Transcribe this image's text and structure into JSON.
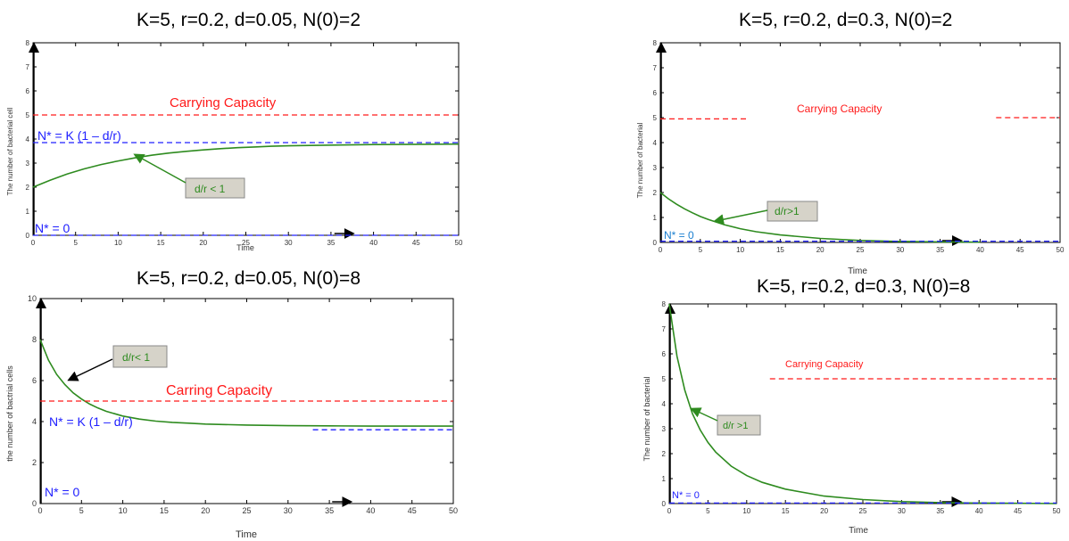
{
  "chart_data": [
    {
      "type": "line",
      "title": "K=5, r=0.2, d=0.05, N(0)=2",
      "xlabel": "Time",
      "ylabel": "The number of bacterial cell",
      "xlim": [
        0,
        50
      ],
      "ylim": [
        0,
        8
      ],
      "xticks": [
        0,
        5,
        10,
        15,
        20,
        25,
        30,
        35,
        40,
        45,
        50
      ],
      "yticks": [
        0,
        1,
        2,
        3,
        4,
        5,
        6,
        7,
        8
      ],
      "grid": false,
      "series": [
        {
          "color": "#2e8b1f",
          "style": "solid",
          "x": [
            0,
            2,
            4,
            6,
            8,
            10,
            12,
            14,
            16,
            18,
            20,
            22,
            24,
            26,
            28,
            30,
            35,
            40,
            45,
            50
          ],
          "y": [
            2.0,
            2.29,
            2.55,
            2.76,
            2.94,
            3.09,
            3.22,
            3.33,
            3.42,
            3.49,
            3.55,
            3.6,
            3.64,
            3.67,
            3.7,
            3.72,
            3.75,
            3.77,
            3.78,
            3.79
          ]
        },
        {
          "color": "#ff1a1a",
          "style": "dashed",
          "x": [
            0,
            50
          ],
          "y": [
            5,
            5
          ]
        },
        {
          "color": "#2020ff",
          "style": "dashed",
          "x": [
            0,
            50
          ],
          "y": [
            3.85,
            3.85
          ]
        },
        {
          "color": "#2020ff",
          "style": "dashed",
          "x": [
            0,
            50
          ],
          "y": [
            0,
            0
          ]
        }
      ],
      "annotations": {
        "carrying": "Carrying Capacity",
        "nstar": "N* = K (1 – d/r)",
        "nzero": "N* = 0",
        "ratio": "d/r < 1"
      }
    },
    {
      "type": "line",
      "title": "K=5, r=0.2, d=0.3, N(0)=2",
      "xlabel": "Time",
      "ylabel": "The number of bacterial",
      "xlim": [
        0,
        50
      ],
      "ylim": [
        0,
        8
      ],
      "xticks": [
        0,
        5,
        10,
        15,
        20,
        25,
        30,
        35,
        40,
        45,
        50
      ],
      "yticks": [
        0,
        1,
        2,
        3,
        4,
        5,
        6,
        7,
        8
      ],
      "grid": false,
      "series": [
        {
          "color": "#2e8b1f",
          "style": "solid",
          "x": [
            0,
            1,
            2,
            3,
            4,
            5,
            6,
            8,
            10,
            12,
            15,
            20,
            25,
            30,
            35,
            40
          ],
          "y": [
            2.0,
            1.75,
            1.54,
            1.35,
            1.19,
            1.04,
            0.92,
            0.71,
            0.55,
            0.43,
            0.3,
            0.16,
            0.08,
            0.04,
            0.02,
            0.01
          ]
        },
        {
          "color": "#ff1a1a",
          "style": "dashed",
          "x": [
            0,
            11
          ],
          "y": [
            4.95,
            4.95
          ]
        },
        {
          "color": "#ff1a1a",
          "style": "dashed",
          "x": [
            42,
            50
          ],
          "y": [
            5,
            5
          ]
        },
        {
          "color": "#2020ff",
          "style": "dashed",
          "x": [
            0,
            50
          ],
          "y": [
            0.05,
            0.05
          ]
        }
      ],
      "annotations": {
        "carrying": "Carrying Capacity",
        "nzero": "N* = 0",
        "ratio": "d/r>1"
      }
    },
    {
      "type": "line",
      "title": "K=5, r=0.2, d=0.05, N(0)=8",
      "xlabel": "Time",
      "ylabel": "the number of bactrial cells",
      "xlim": [
        0,
        50
      ],
      "ylim": [
        0,
        10
      ],
      "xticks": [
        0,
        5,
        10,
        15,
        20,
        25,
        30,
        35,
        40,
        45,
        50
      ],
      "yticks": [
        0,
        2,
        4,
        6,
        8,
        10
      ],
      "grid": false,
      "series": [
        {
          "color": "#2e8b1f",
          "style": "solid",
          "x": [
            0,
            1,
            2,
            3,
            4,
            5,
            6,
            7,
            8,
            10,
            12,
            14,
            16,
            18,
            20,
            25,
            30,
            35,
            40,
            45,
            50
          ],
          "y": [
            8.0,
            7.0,
            6.3,
            5.8,
            5.4,
            5.1,
            4.85,
            4.66,
            4.5,
            4.27,
            4.12,
            4.02,
            3.96,
            3.92,
            3.88,
            3.83,
            3.8,
            3.79,
            3.78,
            3.78,
            3.78
          ]
        },
        {
          "color": "#ff1a1a",
          "style": "dashed",
          "x": [
            0,
            50
          ],
          "y": [
            5,
            5
          ]
        },
        {
          "color": "#2020ff",
          "style": "dashed",
          "x": [
            33,
            50
          ],
          "y": [
            3.6,
            3.6
          ]
        }
      ],
      "annotations": {
        "carrying": "Carring Capacity",
        "nstar": "N* = K (1 – d/r)",
        "nzero": "N* = 0",
        "ratio": "d/r< 1"
      }
    },
    {
      "type": "line",
      "title": "K=5, r=0.2, d=0.3, N(0)=8",
      "xlabel": "Time",
      "ylabel": "The number of bacterial",
      "xlim": [
        0,
        50
      ],
      "ylim": [
        0,
        8
      ],
      "xticks": [
        0,
        5,
        10,
        15,
        20,
        25,
        30,
        35,
        40,
        45,
        50
      ],
      "yticks": [
        0,
        1,
        2,
        3,
        4,
        5,
        6,
        7,
        8
      ],
      "grid": false,
      "series": [
        {
          "color": "#2e8b1f",
          "style": "solid",
          "x": [
            0,
            1,
            2,
            3,
            4,
            5,
            6,
            8,
            10,
            12,
            15,
            20,
            25,
            30,
            35,
            40,
            45,
            50
          ],
          "y": [
            8.0,
            5.9,
            4.55,
            3.6,
            2.95,
            2.45,
            2.06,
            1.5,
            1.12,
            0.85,
            0.58,
            0.3,
            0.16,
            0.08,
            0.04,
            0.02,
            0.01,
            0.0
          ]
        },
        {
          "color": "#ff1a1a",
          "style": "dashed",
          "x": [
            13,
            50
          ],
          "y": [
            5,
            5
          ]
        },
        {
          "color": "#2020ff",
          "style": "dashed",
          "x": [
            0,
            50
          ],
          "y": [
            0.02,
            0.02
          ]
        }
      ],
      "annotations": {
        "carrying": "Carrying Capacity",
        "nzero": "N* = 0",
        "ratio": "d/r >1"
      }
    }
  ]
}
